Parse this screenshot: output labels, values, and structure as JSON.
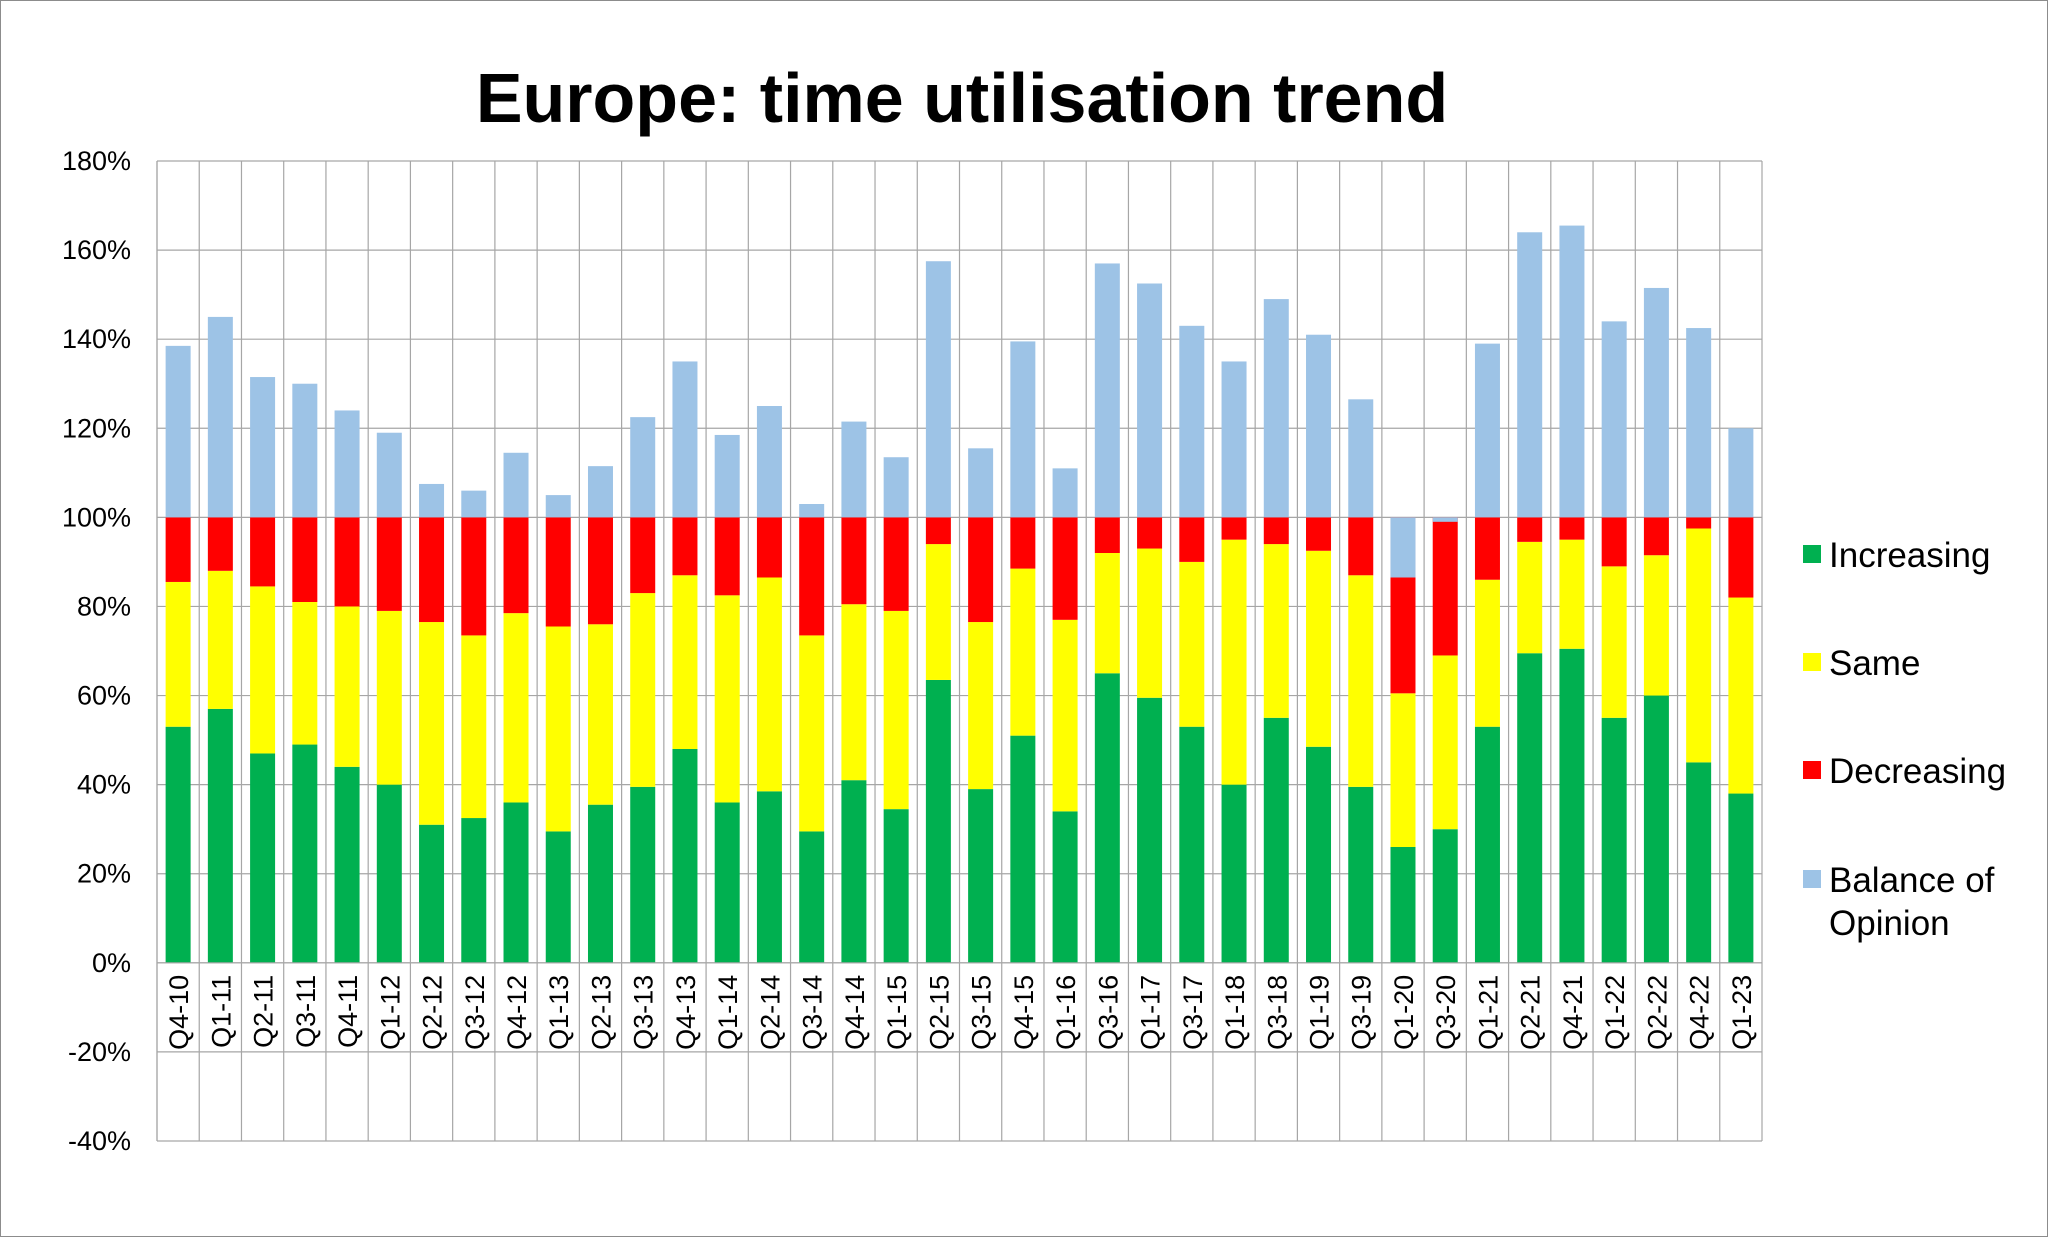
{
  "chart_data": {
    "type": "bar",
    "stacked": true,
    "title": "Europe: time utilisation trend",
    "xlabel": "",
    "ylabel": "",
    "ylim": [
      -40,
      180
    ],
    "y_ticks": [
      -40,
      -20,
      0,
      20,
      40,
      60,
      80,
      100,
      120,
      140,
      160,
      180
    ],
    "y_tick_labels": [
      "-40%",
      "-20%",
      "0%",
      "20%",
      "40%",
      "60%",
      "80%",
      "100%",
      "120%",
      "140%",
      "160%",
      "180%"
    ],
    "grid": true,
    "legend_position": "right",
    "categories": [
      "Q4-10",
      "Q1-11",
      "Q2-11",
      "Q3-11",
      "Q4-11",
      "Q1-12",
      "Q2-12",
      "Q3-12",
      "Q4-12",
      "Q1-13",
      "Q2-13",
      "Q3-13",
      "Q4-13",
      "Q1-14",
      "Q2-14",
      "Q3-14",
      "Q4-14",
      "Q1-15",
      "Q2-15",
      "Q3-15",
      "Q4-15",
      "Q1-16",
      "Q3-16",
      "Q1-17",
      "Q3-17",
      "Q1-18",
      "Q3-18",
      "Q1-19",
      "Q3-19",
      "Q1-20",
      "Q3-20",
      "Q1-21",
      "Q2-21",
      "Q4-21",
      "Q1-22",
      "Q2-22",
      "Q4-22",
      "Q1-23"
    ],
    "series": [
      {
        "name": "Increasing",
        "color": "#00b050",
        "values": [
          53,
          57,
          47,
          49,
          44,
          40,
          31,
          32.5,
          36,
          29.5,
          35.5,
          39.5,
          48,
          36,
          38.5,
          29.5,
          41,
          34.5,
          63.5,
          39,
          51,
          34,
          65,
          59.5,
          53,
          40,
          55,
          48.5,
          39.5,
          26,
          30,
          53,
          69.5,
          70.5,
          55,
          60,
          45,
          38
        ]
      },
      {
        "name": "Same",
        "color": "#ffff00",
        "values": [
          32.5,
          31,
          37.5,
          32,
          36,
          39,
          45.5,
          41,
          42.5,
          46,
          40.5,
          43.5,
          39,
          46.5,
          48,
          44,
          39.5,
          44.5,
          30.5,
          37.5,
          37.5,
          43,
          27,
          33.5,
          37,
          55,
          39,
          44,
          47.5,
          34.5,
          39,
          33,
          25,
          24.5,
          34,
          31.5,
          52.5,
          44
        ]
      },
      {
        "name": "Decreasing",
        "color": "#ff0000",
        "values": [
          14.5,
          12,
          15.5,
          19,
          20,
          21,
          23.5,
          26.5,
          21.5,
          24.5,
          24,
          17,
          13,
          17.5,
          13.5,
          26.5,
          19.5,
          21,
          6,
          23.5,
          11.5,
          23,
          8,
          7,
          10,
          5,
          6,
          7.5,
          13,
          39.5,
          31,
          14,
          5.5,
          5,
          11,
          8.5,
          2.5,
          18
        ]
      },
      {
        "name": "Balance of Opinion",
        "color": "#9dc3e6",
        "values": [
          38.5,
          45,
          31.5,
          30,
          24,
          19,
          7.5,
          6,
          14.5,
          5,
          11.5,
          22.5,
          35,
          18.5,
          25,
          3,
          21.5,
          13.5,
          57.5,
          15.5,
          39.5,
          11,
          57,
          52.5,
          43,
          35,
          49,
          41,
          26.5,
          -13.5,
          -1,
          39,
          64,
          65.5,
          44,
          51.5,
          42.5,
          20
        ]
      }
    ]
  }
}
